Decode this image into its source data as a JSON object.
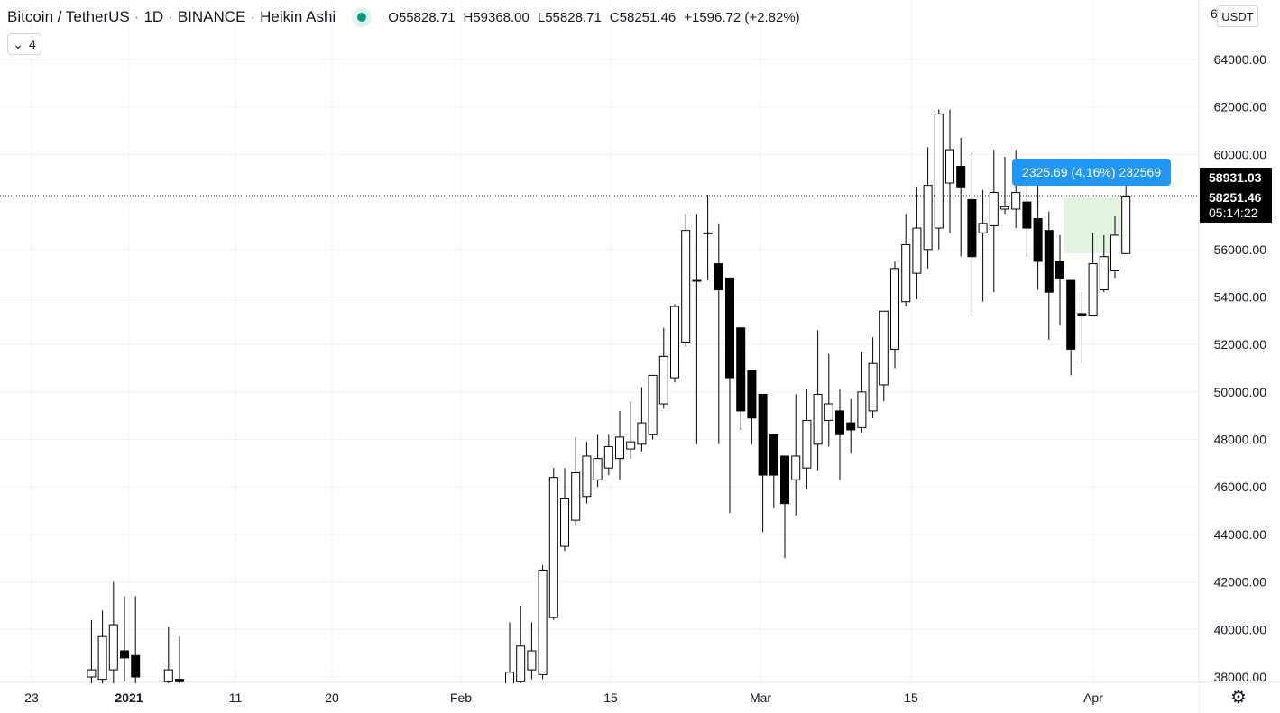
{
  "header": {
    "symbol": "Bitcoin / TetherUS",
    "interval": "1D",
    "exchange": "BINANCE",
    "chart_style": "Heikin Ashi",
    "o_label": "O",
    "o_value": "55828.71",
    "h_label": "H",
    "h_value": "59368.00",
    "l_label": "L",
    "l_value": "55828.71",
    "c_label": "C",
    "c_value": "58251.46",
    "change": "+1596.72 (+2.82%)"
  },
  "collapse_count": "4",
  "currency_unit": "USDT",
  "measure_tool": {
    "text": "2325.69 (4.16%) 232569"
  },
  "price_axis": {
    "labels": [
      "64000.00",
      "62000.00",
      "60000.00",
      "56000.00",
      "54000.00",
      "52000.00",
      "50000.00",
      "48000.00",
      "46000.00",
      "44000.00",
      "42000.00",
      "40000.00",
      "38000.00"
    ],
    "top_partial": "6",
    "tag_top": "58931.03",
    "tag_last": "58251.46",
    "tag_countdown": "05:14:22"
  },
  "time_axis": [
    "23",
    "2021",
    "11",
    "20",
    "Feb",
    "15",
    "Mar",
    "15",
    "Apr"
  ],
  "colors": {
    "up_fill": "#ffffff",
    "down_fill": "#000000",
    "candle_border": "#000000",
    "measure_blue": "#2196f3",
    "measure_fill": "#e4f4e1",
    "grid": "#f0f3fa"
  },
  "chart_data": {
    "type": "candlestick",
    "style": "Heikin Ashi",
    "y_range": [
      37500,
      65000
    ],
    "grid": true,
    "last_price": 58251.46,
    "candles": [
      {
        "date": "2020-12-29",
        "o": 38000,
        "h": 40400,
        "l": 37600,
        "c": 38300
      },
      {
        "date": "2020-12-30",
        "o": 37900,
        "h": 40800,
        "l": 37500,
        "c": 39700
      },
      {
        "date": "2020-12-31",
        "o": 38300,
        "h": 42000,
        "l": 37600,
        "c": 40200
      },
      {
        "date": "2021-01-01",
        "o": 39100,
        "h": 41400,
        "l": 37800,
        "c": 38800
      },
      {
        "date": "2021-01-02",
        "o": 38900,
        "h": 41400,
        "l": 37700,
        "c": 38000
      },
      {
        "date": "2021-01-05",
        "o": 37800,
        "h": 40100,
        "l": 37500,
        "c": 38300
      },
      {
        "date": "2021-01-06",
        "o": 37900,
        "h": 39700,
        "l": 37600,
        "c": 37800
      },
      {
        "date": "2021-02-05",
        "o": 37600,
        "h": 40300,
        "l": 37500,
        "c": 38200
      },
      {
        "date": "2021-02-06",
        "o": 37800,
        "h": 41000,
        "l": 37600,
        "c": 39300
      },
      {
        "date": "2021-02-07",
        "o": 38300,
        "h": 40300,
        "l": 37900,
        "c": 39100
      },
      {
        "date": "2021-02-08",
        "o": 38100,
        "h": 42700,
        "l": 37900,
        "c": 42500
      },
      {
        "date": "2021-02-09",
        "o": 40500,
        "h": 46800,
        "l": 40400,
        "c": 46400
      },
      {
        "date": "2021-02-10",
        "o": 43500,
        "h": 46800,
        "l": 43300,
        "c": 45500
      },
      {
        "date": "2021-02-11",
        "o": 44600,
        "h": 48100,
        "l": 44400,
        "c": 46600
      },
      {
        "date": "2021-02-12",
        "o": 45600,
        "h": 47900,
        "l": 45300,
        "c": 47300
      },
      {
        "date": "2021-02-13",
        "o": 46300,
        "h": 48200,
        "l": 46000,
        "c": 47200
      },
      {
        "date": "2021-02-14",
        "o": 46800,
        "h": 48200,
        "l": 46500,
        "c": 47700
      },
      {
        "date": "2021-02-15",
        "o": 47200,
        "h": 49200,
        "l": 46300,
        "c": 48100
      },
      {
        "date": "2021-02-16",
        "o": 47600,
        "h": 49600,
        "l": 47200,
        "c": 47900
      },
      {
        "date": "2021-02-17",
        "o": 47800,
        "h": 50200,
        "l": 47500,
        "c": 48700
      },
      {
        "date": "2021-02-18",
        "o": 48200,
        "h": 50700,
        "l": 48000,
        "c": 50700
      },
      {
        "date": "2021-02-19",
        "o": 49500,
        "h": 52700,
        "l": 49300,
        "c": 51500
      },
      {
        "date": "2021-02-20",
        "o": 50600,
        "h": 53700,
        "l": 50400,
        "c": 53600
      },
      {
        "date": "2021-02-21",
        "o": 52100,
        "h": 57500,
        "l": 51900,
        "c": 56800
      },
      {
        "date": "2021-02-22",
        "o": 54700,
        "h": 57500,
        "l": 47800,
        "c": 54700
      },
      {
        "date": "2021-02-23",
        "o": 56700,
        "h": 58300,
        "l": 54700,
        "c": 56700
      },
      {
        "date": "2021-02-24",
        "o": 55400,
        "h": 57100,
        "l": 47800,
        "c": 54300
      },
      {
        "date": "2021-02-25",
        "o": 54800,
        "h": 54800,
        "l": 44900,
        "c": 50600
      },
      {
        "date": "2021-02-26",
        "o": 52700,
        "h": 52700,
        "l": 48400,
        "c": 49200
      },
      {
        "date": "2021-02-27",
        "o": 50900,
        "h": 50900,
        "l": 47800,
        "c": 48900
      },
      {
        "date": "2021-02-28",
        "o": 49900,
        "h": 49900,
        "l": 44100,
        "c": 46500
      },
      {
        "date": "2021-03-01",
        "o": 48200,
        "h": 48200,
        "l": 45100,
        "c": 46500
      },
      {
        "date": "2021-03-02",
        "o": 47300,
        "h": 47300,
        "l": 43000,
        "c": 45300
      },
      {
        "date": "2021-03-03",
        "o": 46300,
        "h": 49900,
        "l": 44800,
        "c": 47300
      },
      {
        "date": "2021-03-04",
        "o": 46800,
        "h": 50100,
        "l": 45900,
        "c": 48800
      },
      {
        "date": "2021-03-05",
        "o": 47800,
        "h": 52600,
        "l": 46700,
        "c": 49900
      },
      {
        "date": "2021-03-06",
        "o": 48800,
        "h": 51600,
        "l": 47700,
        "c": 49500
      },
      {
        "date": "2021-03-07",
        "o": 49200,
        "h": 50100,
        "l": 46300,
        "c": 48200
      },
      {
        "date": "2021-03-08",
        "o": 48700,
        "h": 49700,
        "l": 47400,
        "c": 48400
      },
      {
        "date": "2021-03-09",
        "o": 48500,
        "h": 51700,
        "l": 48300,
        "c": 50000
      },
      {
        "date": "2021-03-10",
        "o": 49200,
        "h": 52300,
        "l": 48900,
        "c": 51200
      },
      {
        "date": "2021-03-11",
        "o": 50300,
        "h": 53400,
        "l": 49600,
        "c": 53400
      },
      {
        "date": "2021-03-12",
        "o": 51800,
        "h": 55500,
        "l": 51000,
        "c": 55200
      },
      {
        "date": "2021-03-13",
        "o": 53800,
        "h": 57500,
        "l": 53600,
        "c": 56200
      },
      {
        "date": "2021-03-14",
        "o": 55000,
        "h": 58600,
        "l": 53900,
        "c": 56900
      },
      {
        "date": "2021-03-15",
        "o": 56000,
        "h": 60300,
        "l": 55200,
        "c": 58700
      },
      {
        "date": "2021-03-16",
        "o": 56900,
        "h": 61900,
        "l": 56000,
        "c": 61700
      },
      {
        "date": "2021-03-17",
        "o": 58800,
        "h": 61900,
        "l": 56700,
        "c": 60200
      },
      {
        "date": "2021-03-18",
        "o": 59500,
        "h": 60700,
        "l": 55700,
        "c": 58600
      },
      {
        "date": "2021-03-19",
        "o": 58100,
        "h": 60100,
        "l": 53200,
        "c": 55700
      },
      {
        "date": "2021-03-20",
        "o": 56700,
        "h": 58500,
        "l": 53800,
        "c": 57100
      },
      {
        "date": "2021-03-21",
        "o": 57000,
        "h": 60200,
        "l": 54200,
        "c": 58400
      },
      {
        "date": "2021-03-22",
        "o": 57700,
        "h": 59900,
        "l": 57500,
        "c": 57800
      },
      {
        "date": "2021-03-23",
        "o": 57700,
        "h": 60200,
        "l": 56900,
        "c": 58400
      },
      {
        "date": "2021-03-24",
        "o": 58000,
        "h": 58700,
        "l": 55700,
        "c": 56900
      },
      {
        "date": "2021-03-25",
        "o": 57300,
        "h": 59300,
        "l": 54300,
        "c": 55500
      },
      {
        "date": "2021-03-26",
        "o": 56800,
        "h": 57600,
        "l": 52200,
        "c": 54200
      },
      {
        "date": "2021-03-27",
        "o": 55500,
        "h": 56600,
        "l": 52800,
        "c": 54800
      },
      {
        "date": "2021-03-28",
        "o": 54700,
        "h": 54700,
        "l": 50700,
        "c": 51800
      },
      {
        "date": "2021-03-29",
        "o": 53300,
        "h": 54200,
        "l": 51200,
        "c": 53200
      },
      {
        "date": "2021-03-30",
        "o": 53200,
        "h": 56700,
        "l": 53200,
        "c": 55400
      },
      {
        "date": "2021-03-31",
        "o": 54300,
        "h": 56600,
        "l": 54200,
        "c": 55700
      },
      {
        "date": "2021-04-01",
        "o": 55100,
        "h": 57400,
        "l": 54800,
        "c": 56600
      },
      {
        "date": "2021-04-02",
        "o": 55829,
        "h": 59368,
        "l": 55829,
        "c": 58251
      }
    ]
  }
}
